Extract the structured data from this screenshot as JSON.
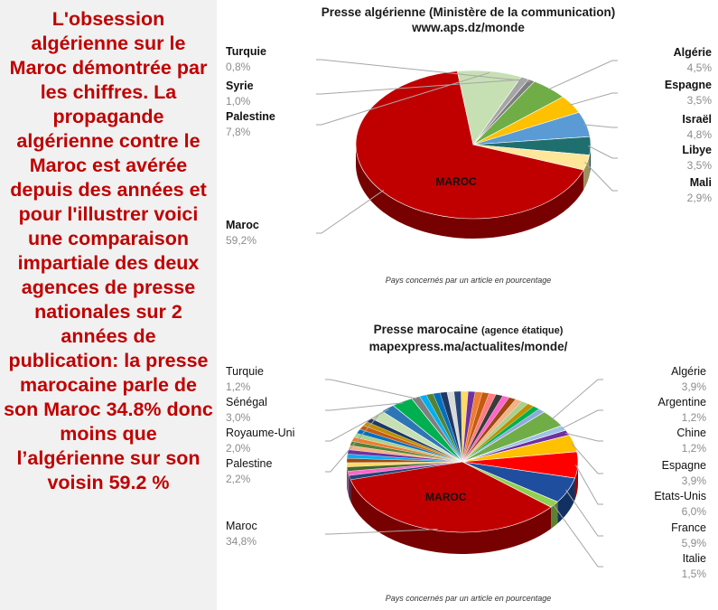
{
  "sidebar": {
    "text": "L'obsession algérienne sur le Maroc démontrée par les chiffres. La propagande algérienne contre le Maroc est avérée depuis des années et pour l'illustrer voici une comparaison impartiale des deux agences de presse nationales sur 2 années de publication: la presse marocaine parle de son Maroc 34.8% donc moins que l’algérienne sur son voisin 59.2 %"
  },
  "colors": {
    "sidebar_text": "#c00000",
    "maroc": "#c00000",
    "leader": "#a6a6a6"
  },
  "chart_data": [
    {
      "type": "pie",
      "title": "Presse algérienne (Ministère de la communication)",
      "subtitle": "www.aps.dz/monde",
      "caption": "Pays concernés par un article en pourcentage",
      "center_label": "MAROC",
      "slices": [
        {
          "name": "Maroc",
          "value": 59.2,
          "value_label": "59,2%",
          "color": "#c00000",
          "side": "left"
        },
        {
          "name": "Turquie",
          "value": 0.8,
          "value_label": "0,8%",
          "color": "#7f7f7f",
          "side": "left"
        },
        {
          "name": "Syrie",
          "value": 1.0,
          "value_label": "1,0%",
          "color": "#a5a5a5",
          "side": "left"
        },
        {
          "name": "Palestine",
          "value": 7.8,
          "value_label": "7,8%",
          "color": "#c6e0b4",
          "side": "left"
        },
        {
          "name": "Algérie",
          "value": 4.5,
          "value_label": "4,5%",
          "color": "#70ad47",
          "side": "right"
        },
        {
          "name": "Espagne",
          "value": 3.5,
          "value_label": "3,5%",
          "color": "#ffc000",
          "side": "right"
        },
        {
          "name": "Israël",
          "value": 4.8,
          "value_label": "4,8%",
          "color": "#5b9bd5",
          "side": "right"
        },
        {
          "name": "Libye",
          "value": 3.5,
          "value_label": "3,5%",
          "color": "#1f6f6f",
          "side": "right"
        },
        {
          "name": "Mali",
          "value": 2.9,
          "value_label": "2,9%",
          "color": "#ffe699",
          "side": "right"
        }
      ]
    },
    {
      "type": "pie",
      "title": "Presse marocaine",
      "title_note": "(agence étatique)",
      "subtitle": "mapexpress.ma/actualites/monde/",
      "caption": "Pays concernés par un article en pourcentage",
      "center_label": "MAROC",
      "slices": [
        {
          "name": "Maroc",
          "value": 34.8,
          "value_label": "34,8%",
          "color": "#c00000",
          "side": "left"
        },
        {
          "name": "Turquie",
          "value": 1.2,
          "value_label": "1,2%",
          "color": "#7f7f7f",
          "side": "left"
        },
        {
          "name": "Sénégal",
          "value": 3.0,
          "value_label": "3,0%",
          "color": "#00b050",
          "side": "left"
        },
        {
          "name": "Royaume-Uni",
          "value": 2.0,
          "value_label": "2,0%",
          "color": "#2e75b6",
          "side": "left"
        },
        {
          "name": "Palestine",
          "value": 2.2,
          "value_label": "2,2%",
          "color": "#c6e0b4",
          "side": "left"
        },
        {
          "name": "Algérie",
          "value": 3.9,
          "value_label": "3,9%",
          "color": "#70ad47",
          "side": "right"
        },
        {
          "name": "Argentine",
          "value": 1.2,
          "value_label": "1,2%",
          "color": "#9dc3e6",
          "side": "right"
        },
        {
          "name": "Chine",
          "value": 1.2,
          "value_label": "1,2%",
          "color": "#7030a0",
          "side": "right"
        },
        {
          "name": "Espagne",
          "value": 3.9,
          "value_label": "3,9%",
          "color": "#ffc000",
          "side": "right"
        },
        {
          "name": "Etats-Unis",
          "value": 6.0,
          "value_label": "6,0%",
          "color": "#ff0000",
          "side": "right"
        },
        {
          "name": "France",
          "value": 5.9,
          "value_label": "5,9%",
          "color": "#1f4e9e",
          "side": "right"
        },
        {
          "name": "Italie",
          "value": 1.5,
          "value_label": "1,5%",
          "color": "#92d050",
          "side": "right"
        }
      ]
    }
  ]
}
